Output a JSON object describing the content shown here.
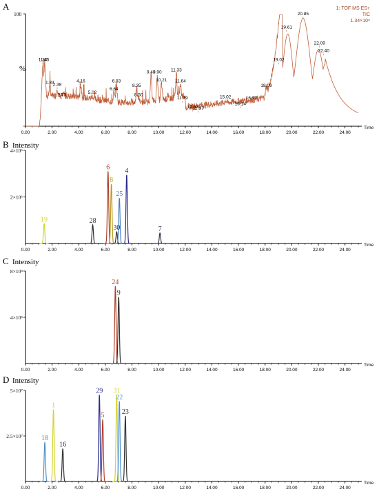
{
  "chart_data": [
    {
      "type": "line",
      "panel_label": "A",
      "ylabel": "%",
      "ylim": [
        0,
        100
      ],
      "y_ticks": [
        0,
        100
      ],
      "x_label": "Time",
      "xlim": [
        0,
        25
      ],
      "x_ticks": [
        "0.00",
        "2.00",
        "4.00",
        "6.00",
        "8.00",
        "10.00",
        "12.00",
        "14.00",
        "16.00",
        "18.00",
        "20.00",
        "22.00",
        "24.00"
      ],
      "legend": [
        "1: TOF MS ES+",
        "TIC",
        "1.34×10⁸"
      ],
      "line_color": "#c0603a",
      "annotated_peaks": [
        {
          "label": "1.30",
          "x": 1.3,
          "y": 56
        },
        {
          "label": "1.45",
          "x": 1.45,
          "y": 56
        },
        {
          "label": "1.83",
          "x": 1.83,
          "y": 36
        },
        {
          "label": "2.38",
          "x": 2.38,
          "y": 34
        },
        {
          "label": "2.73",
          "x": 2.73,
          "y": 25
        },
        {
          "label": "4.16",
          "x": 4.16,
          "y": 37
        },
        {
          "label": "5.02",
          "x": 5.02,
          "y": 27
        },
        {
          "label": "6.64",
          "x": 6.64,
          "y": 30
        },
        {
          "label": "6.83",
          "x": 6.83,
          "y": 37
        },
        {
          "label": "8.35",
          "x": 8.35,
          "y": 33
        },
        {
          "label": "8.50",
          "x": 8.5,
          "y": 25
        },
        {
          "label": "9.43",
          "x": 9.43,
          "y": 45
        },
        {
          "label": "9.90",
          "x": 9.9,
          "y": 45
        },
        {
          "label": "10.21",
          "x": 10.21,
          "y": 38
        },
        {
          "label": "11.33",
          "x": 11.33,
          "y": 47
        },
        {
          "label": "11.64",
          "x": 11.64,
          "y": 37
        },
        {
          "label": "11.79",
          "x": 11.79,
          "y": 22
        },
        {
          "label": "12.57",
          "x": 12.57,
          "y": 14
        },
        {
          "label": "12.97",
          "x": 12.97,
          "y": 13
        },
        {
          "label": "15.02",
          "x": 15.02,
          "y": 23
        },
        {
          "label": "16.14",
          "x": 16.14,
          "y": 17
        },
        {
          "label": "16.97",
          "x": 16.97,
          "y": 22
        },
        {
          "label": "18.09",
          "x": 18.09,
          "y": 33
        },
        {
          "label": "19.02",
          "x": 19.02,
          "y": 56
        },
        {
          "label": "19.61",
          "x": 19.61,
          "y": 85
        },
        {
          "label": "20.85",
          "x": 20.85,
          "y": 97
        },
        {
          "label": "22.09",
          "x": 22.09,
          "y": 71
        },
        {
          "label": "22.40",
          "x": 22.4,
          "y": 64
        }
      ]
    },
    {
      "type": "line",
      "panel_label": "B",
      "ylabel": "Intensity",
      "ylim": [
        0,
        4
      ],
      "y_tick_labels": [
        {
          "v": 4,
          "label": "4×10⁶"
        },
        {
          "v": 2,
          "label": "2×10⁶"
        }
      ],
      "x_label": "Time",
      "xlim": [
        0,
        25
      ],
      "x_ticks": [
        "0.00",
        "2.00",
        "4.00",
        "6.00",
        "8.00",
        "10.00",
        "12.00",
        "14.00",
        "16.00",
        "18.00",
        "20.00",
        "22.00",
        "24.00"
      ],
      "peaks": [
        {
          "label": "19",
          "x": 1.4,
          "height": 0.85,
          "color": "#d4d42a"
        },
        {
          "label": "28",
          "x": 5.05,
          "height": 0.8,
          "color": "#303030"
        },
        {
          "label": "6",
          "x": 6.2,
          "height": 3.1,
          "color": "#b0402a"
        },
        {
          "label": "8",
          "x": 6.45,
          "height": 2.55,
          "color": "#b89a20"
        },
        {
          "label": "30",
          "x": 6.85,
          "height": 0.5,
          "color": "#303030"
        },
        {
          "label": "25",
          "x": 7.05,
          "height": 1.95,
          "color": "#4a7fc0"
        },
        {
          "label": "4",
          "x": 7.6,
          "height": 2.95,
          "color": "#2a2a8a"
        },
        {
          "label": "7",
          "x": 10.1,
          "height": 0.45,
          "color": "#303050"
        }
      ]
    },
    {
      "type": "line",
      "panel_label": "C",
      "ylabel": "Intensity",
      "ylim": [
        0,
        8
      ],
      "y_tick_labels": [
        {
          "v": 8,
          "label": "8×10⁵"
        },
        {
          "v": 4,
          "label": "4×10⁵"
        }
      ],
      "x_label": "Time",
      "xlim": [
        0,
        25
      ],
      "x_ticks": [
        "0.00",
        "2.00",
        "4.00",
        "6.00",
        "8.00",
        "10.00",
        "12.00",
        "14.00",
        "16.00",
        "18.00",
        "20.00",
        "22.00",
        "24.00"
      ],
      "peaks": [
        {
          "label": "24",
          "x": 6.75,
          "height": 6.7,
          "color": "#b0402a"
        },
        {
          "label": "9",
          "x": 7.0,
          "height": 5.75,
          "color": "#303030"
        }
      ]
    },
    {
      "type": "line",
      "panel_label": "D",
      "ylabel": "Intensity",
      "ylim": [
        0,
        5
      ],
      "y_tick_labels": [
        {
          "v": 5,
          "label": "5×10⁷"
        },
        {
          "v": 2.5,
          "label": "2.5×10⁷"
        }
      ],
      "x_label": "Time",
      "xlim": [
        0,
        25
      ],
      "x_ticks": [
        "0.00",
        "2.00",
        "4.00",
        "6.00",
        "8.00",
        "10.00",
        "12.00",
        "14.00",
        "16.00",
        "18.00",
        "20.00",
        "22.00",
        "24.00"
      ],
      "peaks": [
        {
          "label": "18",
          "x": 1.45,
          "height": 2.15,
          "color": "#4a90c8"
        },
        {
          "label": "1",
          "x": 2.1,
          "height": 3.95,
          "color": "#d4d42a"
        },
        {
          "label": "16",
          "x": 2.8,
          "height": 1.8,
          "color": "#303030"
        },
        {
          "label": "29",
          "x": 5.55,
          "height": 4.75,
          "color": "#2a2a8a"
        },
        {
          "label": "5",
          "x": 5.8,
          "height": 3.4,
          "color": "#b0402a"
        },
        {
          "label": "31",
          "x": 6.85,
          "height": 4.75,
          "color": "#d4d42a"
        },
        {
          "label": "22",
          "x": 7.05,
          "height": 4.4,
          "color": "#4a90c8"
        },
        {
          "label": "23",
          "x": 7.5,
          "height": 3.6,
          "color": "#303030"
        }
      ]
    }
  ]
}
